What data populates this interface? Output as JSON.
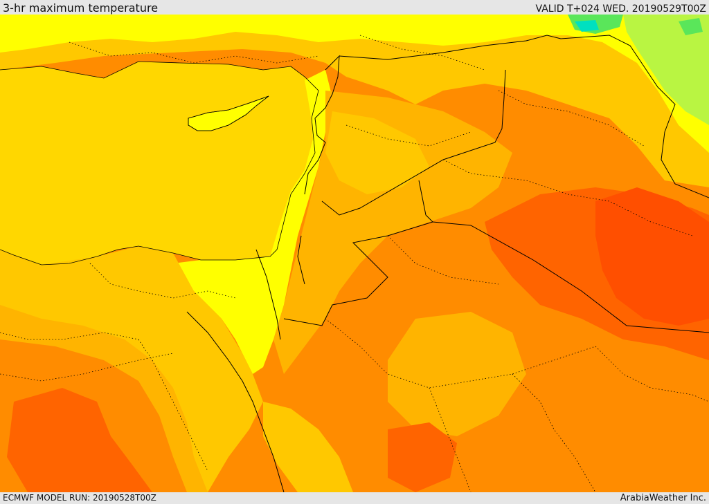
{
  "header": {
    "title": "3-hr maximum temperature",
    "valid_label": "VALID T+024 WED. 20190529T00Z"
  },
  "footer": {
    "model_run": "ECMWF MODEL RUN: 20190528T00Z",
    "credit": "ArabiaWeather Inc."
  },
  "map": {
    "colors": {
      "sea": "#ffd700",
      "cool_green": "#b9f542",
      "green": "#5ae65a",
      "cyan": "#00e0c0",
      "yellow": "#ffff00",
      "gold": "#ffc800",
      "light_orange": "#ffb400",
      "orange": "#ff8c00",
      "deep_orange": "#ff6400",
      "red_orange": "#ff4f00",
      "border": "#000000"
    }
  }
}
